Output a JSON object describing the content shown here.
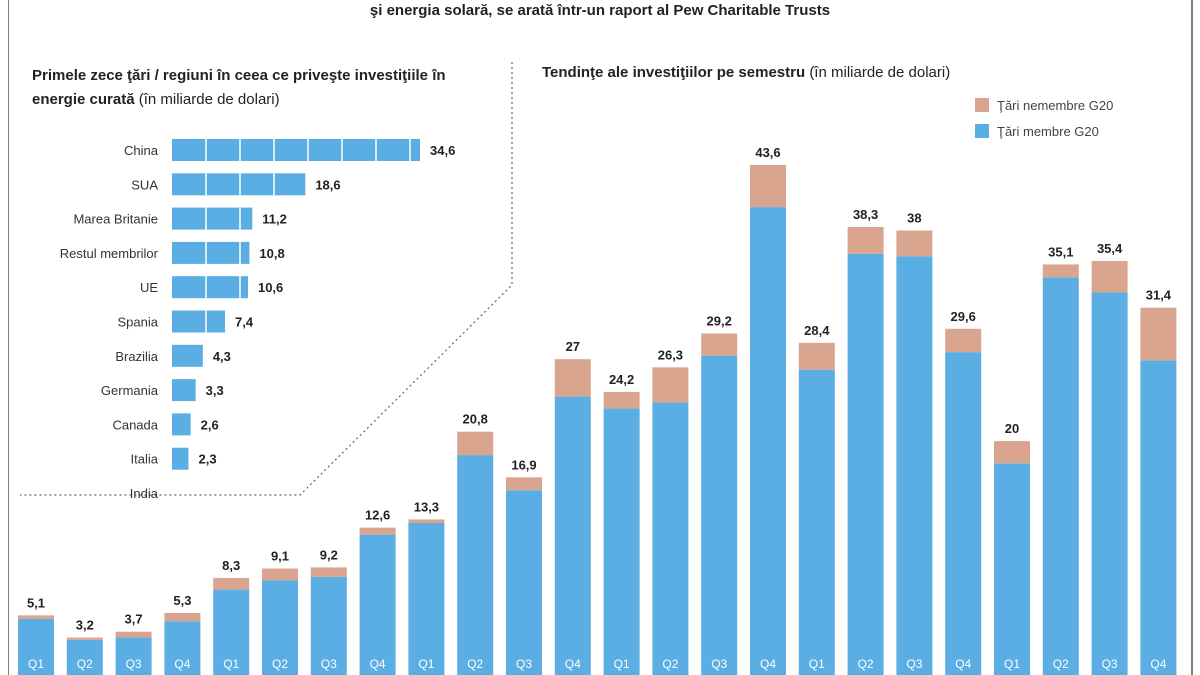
{
  "header": {
    "caption": "şi energia solară, se arată într-un raport al Pew Charitable Trusts"
  },
  "left_panel": {
    "title_bold": "Primele zece ţări / regiuni în ceea ce priveşte investiţiile în energie curată",
    "title_unit": "(în miliarde de dolari)"
  },
  "right_panel": {
    "title_bold": "Tendinţe ale investiţiilor pe semestru",
    "title_unit": "(în miliarde de dolari)",
    "legend": [
      {
        "label": "Ţări nemembre G20",
        "color": "#d9a58f"
      },
      {
        "label": "Ţări membre G20",
        "color": "#5aaee3"
      }
    ]
  },
  "chart_data": [
    {
      "type": "bar",
      "orientation": "horizontal",
      "title": "Primele zece ţări / regiuni în ceea ce priveşte investiţiile în energie curată (în miliarde de dolari)",
      "categories": [
        "China",
        "SUA",
        "Marea Britanie",
        "Restul membrilor",
        "UE",
        "Spania",
        "Brazilia",
        "Germania",
        "Canada",
        "Italia",
        "India"
      ],
      "values": [
        34.6,
        18.6,
        11.2,
        10.8,
        10.6,
        7.4,
        4.3,
        3.3,
        2.6,
        2.3,
        null
      ],
      "value_labels": [
        "34,6",
        "18,6",
        "11,2",
        "10,8",
        "10,6",
        "7,4",
        "4,3",
        "3,3",
        "2,6",
        "2,3",
        ""
      ],
      "color": "#5aaee3"
    },
    {
      "type": "bar",
      "stacked": true,
      "title": "Tendinţe ale investiţiilor pe semestru (în miliarde de dolari)",
      "categories": [
        "Q1",
        "Q2",
        "Q3",
        "Q4",
        "Q1",
        "Q2",
        "Q3",
        "Q4",
        "Q1",
        "Q2",
        "Q3",
        "Q4",
        "Q1",
        "Q2",
        "Q3",
        "Q4",
        "Q1",
        "Q2",
        "Q3",
        "Q4",
        "Q1",
        "Q2",
        "Q3",
        "Q4"
      ],
      "totals": [
        5.1,
        3.2,
        3.7,
        5.3,
        8.3,
        9.1,
        9.2,
        12.6,
        13.3,
        20.8,
        16.9,
        27,
        24.2,
        26.3,
        29.2,
        43.6,
        28.4,
        38.3,
        38,
        29.6,
        20,
        35.1,
        35.4,
        31.4
      ],
      "total_labels": [
        "5,1",
        "3,2",
        "3,7",
        "5,3",
        "8,3",
        "9,1",
        "9,2",
        "12,6",
        "13,3",
        "20,8",
        "16,9",
        "27",
        "24,2",
        "26,3",
        "29,2",
        "43,6",
        "28,4",
        "38,3",
        "38",
        "29,6",
        "20",
        "35,1",
        "35,4",
        "31,4"
      ],
      "series": [
        {
          "name": "Ţări membre G20",
          "color": "#5aaee3",
          "values": [
            4.8,
            3.0,
            3.2,
            4.6,
            7.3,
            8.1,
            8.4,
            12.0,
            13.0,
            18.8,
            15.8,
            23.8,
            22.8,
            23.3,
            27.3,
            40.0,
            26.1,
            36.0,
            35.8,
            27.6,
            18.1,
            34.0,
            32.7,
            26.9
          ]
        },
        {
          "name": "Ţări nemembre G20",
          "color": "#d9a58f",
          "values": [
            0.3,
            0.2,
            0.5,
            0.7,
            1.0,
            1.0,
            0.8,
            0.6,
            0.3,
            2.0,
            1.1,
            3.2,
            1.4,
            3.0,
            1.9,
            3.6,
            2.3,
            2.3,
            2.2,
            2.0,
            1.9,
            1.1,
            2.7,
            4.5
          ]
        }
      ],
      "ylim": [
        0,
        45
      ]
    }
  ]
}
